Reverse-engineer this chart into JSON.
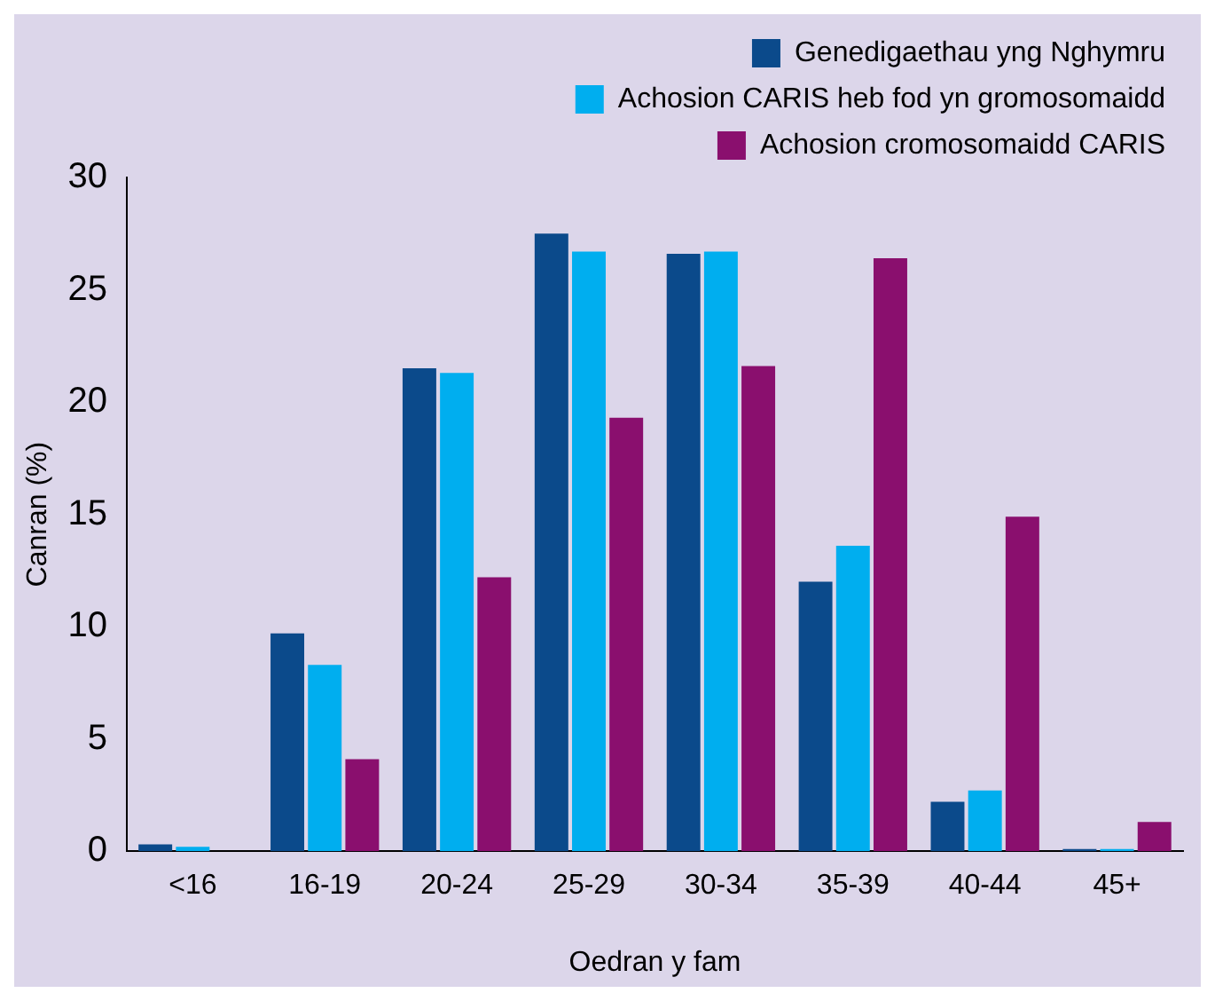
{
  "chart_data": {
    "type": "bar",
    "xlabel": "Oedran y fam",
    "ylabel": "Canran (%)",
    "categories": [
      "<16",
      "16-19",
      "20-24",
      "25-29",
      "30-34",
      "35-39",
      "40-44",
      "45+"
    ],
    "series": [
      {
        "name": "Genedigaethau yng Nghymru",
        "color": "#0b4a8b",
        "values": [
          0.3,
          9.7,
          21.5,
          27.5,
          26.6,
          12.0,
          2.2,
          0.1
        ]
      },
      {
        "name": "Achosion CARIS heb fod yn gromosomaidd",
        "color": "#00aeef",
        "values": [
          0.2,
          8.3,
          21.3,
          26.7,
          26.7,
          13.6,
          2.7,
          0.1
        ]
      },
      {
        "name": "Achosion cromosomaidd CARIS",
        "color": "#8a0f6e",
        "values": [
          0,
          4.1,
          12.2,
          19.3,
          21.6,
          26.4,
          14.9,
          1.3
        ]
      }
    ],
    "ylim": [
      0,
      30
    ],
    "yticks": [
      0,
      5,
      10,
      15,
      20,
      25,
      30
    ],
    "grid": false,
    "legend": "top right"
  }
}
